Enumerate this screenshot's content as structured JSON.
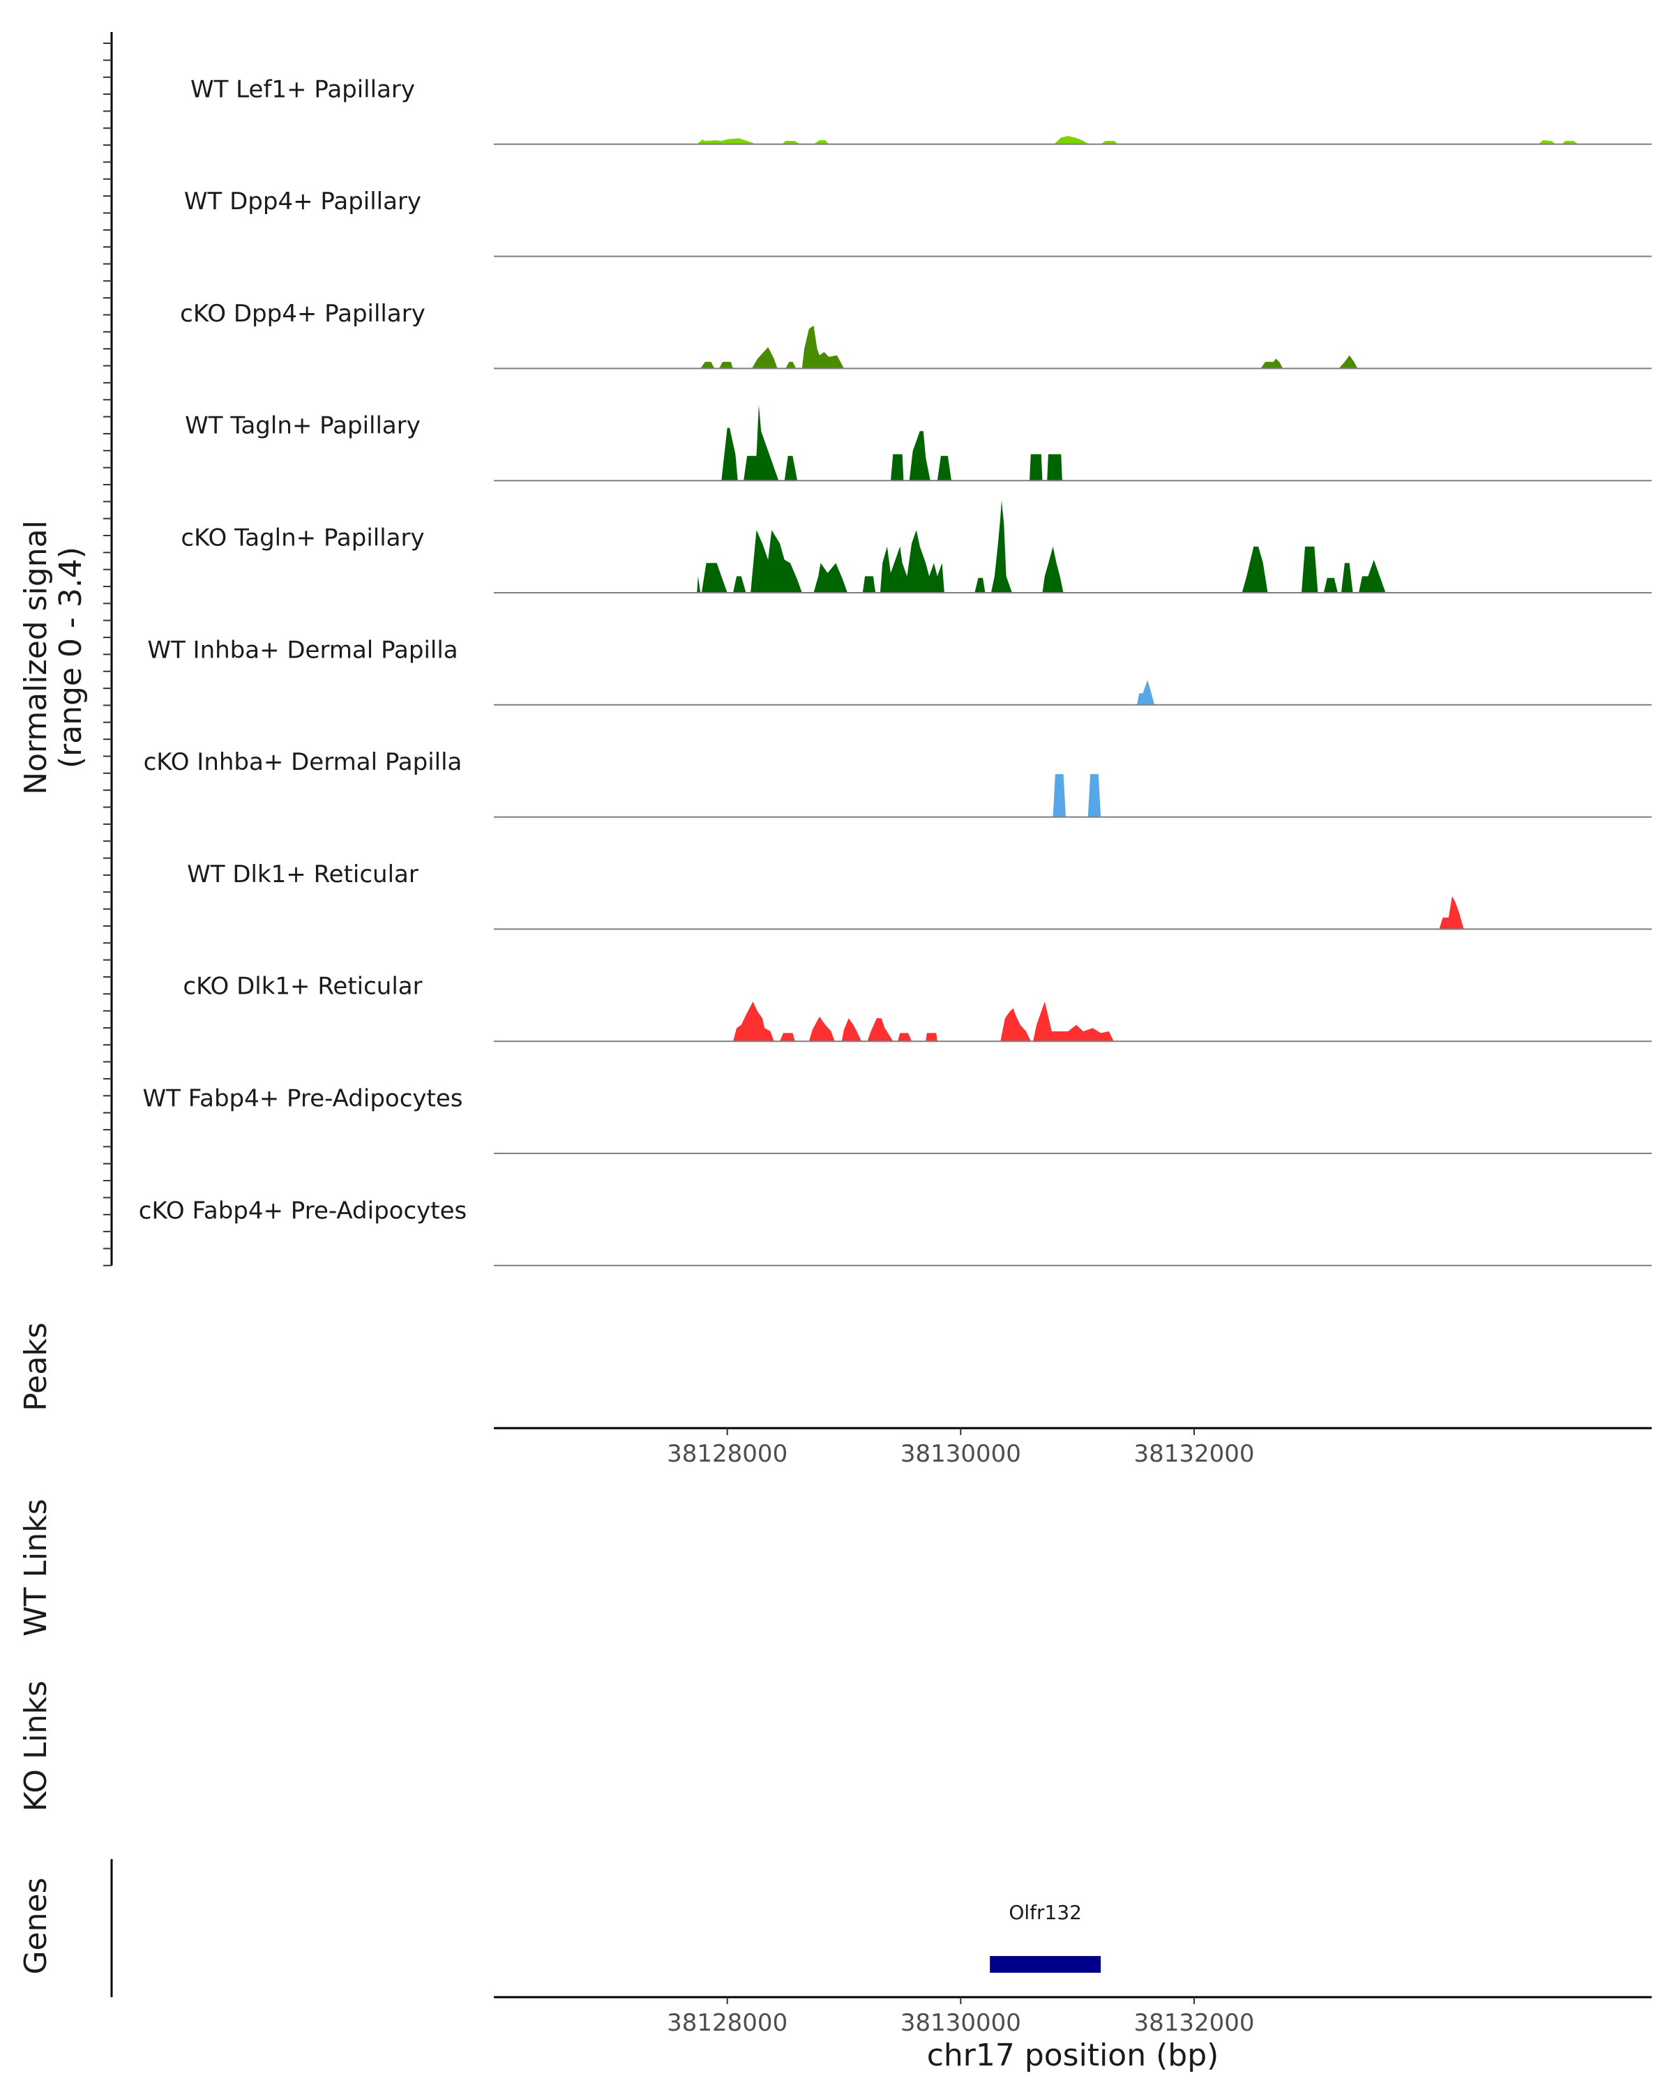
{
  "chart_data": {
    "type": "area",
    "coverage_ylabel_line1": "Normalized signal",
    "coverage_ylabel_line2": "(range 0 - 3.4)",
    "ylim": [
      0,
      3.4
    ],
    "xlim": [
      38126000,
      38135920
    ],
    "x_ticks": [
      38128000,
      38130000,
      38132000
    ],
    "x_tick_labels": [
      "38128000",
      "38130000",
      "38132000"
    ],
    "xlabel": "chr17 position (bp)",
    "peaks_label": "Peaks",
    "wt_links_label": "WT Links",
    "ko_links_label": "KO Links",
    "genes_label": "Genes",
    "gene": {
      "name": "Olfr132",
      "start": 38130250,
      "end": 38131200,
      "color": "#00008b"
    },
    "tracks": [
      {
        "name": "WT Lef1+ Papillary",
        "color": "#7cd300",
        "regions": [
          {
            "x": [
              38127740,
              38127790,
              38127800,
              38127900,
              38127950,
              38128000,
              38128100,
              38128150,
              38128250
            ],
            "y": [
              0,
              0.15,
              0.1,
              0.12,
              0.1,
              0.15,
              0.18,
              0.12,
              0
            ]
          },
          {
            "x": [
              38128470,
              38128500,
              38128580,
              38128620
            ],
            "y": [
              0,
              0.1,
              0.1,
              0
            ]
          },
          {
            "x": [
              38128740,
              38128790,
              38128840,
              38128870
            ],
            "y": [
              0,
              0.12,
              0.12,
              0
            ]
          },
          {
            "x": [
              38130800,
              38130860,
              38130920,
              38130980,
              38131040,
              38131100
            ],
            "y": [
              0,
              0.2,
              0.25,
              0.2,
              0.12,
              0
            ]
          },
          {
            "x": [
              38131200,
              38131240,
              38131320,
              38131340
            ],
            "y": [
              0,
              0.1,
              0.1,
              0
            ]
          },
          {
            "x": [
              38134950,
              38134990,
              38135060,
              38135100
            ],
            "y": [
              0,
              0.12,
              0.1,
              0
            ]
          },
          {
            "x": [
              38135150,
              38135180,
              38135250,
              38135290
            ],
            "y": [
              0,
              0.1,
              0.1,
              0
            ]
          }
        ]
      },
      {
        "name": "WT Dpp4+ Papillary",
        "color": "#5aa000",
        "regions": []
      },
      {
        "name": "cKO Dpp4+ Papillary",
        "color": "#4a8c00",
        "regions": [
          {
            "x": [
              38127770,
              38127810,
              38127860,
              38127890
            ],
            "y": [
              0,
              0.2,
              0.2,
              0
            ]
          },
          {
            "x": [
              38127930,
              38127960,
              38128030,
              38128050
            ],
            "y": [
              0,
              0.2,
              0.2,
              0
            ]
          },
          {
            "x": [
              38128210,
              38128260,
              38128350,
              38128400,
              38128430
            ],
            "y": [
              0,
              0.3,
              0.65,
              0.3,
              0
            ]
          },
          {
            "x": [
              38128500,
              38128530,
              38128560,
              38128590
            ],
            "y": [
              0,
              0.2,
              0.2,
              0
            ]
          },
          {
            "x": [
              38128640,
              38128660,
              38128700,
              38128740,
              38128770,
              38128790,
              38128830,
              38128870,
              38128940,
              38129000
            ],
            "y": [
              0,
              0.6,
              1.2,
              1.3,
              0.6,
              0.4,
              0.5,
              0.35,
              0.4,
              0
            ]
          },
          {
            "x": [
              38132570,
              38132610,
              38132680,
              38132700,
              38132730,
              38132760
            ],
            "y": [
              0,
              0.2,
              0.2,
              0.3,
              0.2,
              0
            ]
          },
          {
            "x": [
              38133240,
              38133290,
              38133330,
              38133370,
              38133400
            ],
            "y": [
              0,
              0.2,
              0.4,
              0.2,
              0
            ]
          }
        ]
      },
      {
        "name": "WT Tagln+ Papillary",
        "color": "#006400",
        "regions": [
          {
            "x": [
              38127950,
              38128000,
              38128020,
              38128070,
              38128090
            ],
            "y": [
              0,
              1.6,
              1.6,
              0.8,
              0
            ]
          },
          {
            "x": [
              38128140,
              38128170,
              38128250,
              38128270,
              38128290,
              38128440
            ],
            "y": [
              0,
              0.75,
              0.75,
              2.3,
              1.5,
              0
            ]
          },
          {
            "x": [
              38128490,
              38128520,
              38128560,
              38128600
            ],
            "y": [
              0,
              0.75,
              0.75,
              0
            ]
          },
          {
            "x": [
              38129400,
              38129420,
              38129500,
              38129510
            ],
            "y": [
              0,
              0.8,
              0.8,
              0
            ]
          },
          {
            "x": [
              38129560,
              38129590,
              38129650,
              38129680,
              38129700,
              38129740
            ],
            "y": [
              0,
              0.9,
              1.5,
              1.5,
              0.7,
              0
            ]
          },
          {
            "x": [
              38129800,
              38129830,
              38129890,
              38129920
            ],
            "y": [
              0,
              0.75,
              0.75,
              0
            ]
          },
          {
            "x": [
              38130590,
              38130600,
              38130690,
              38130700
            ],
            "y": [
              0,
              0.8,
              0.8,
              0
            ]
          },
          {
            "x": [
              38130740,
              38130750,
              38130860,
              38130870
            ],
            "y": [
              0,
              0.8,
              0.8,
              0
            ]
          }
        ]
      },
      {
        "name": "cKO Tagln+ Papillary",
        "color": "#006400",
        "regions": [
          {
            "x": [
              38127740,
              38127750,
              38127770
            ],
            "y": [
              0,
              0.5,
              0
            ]
          },
          {
            "x": [
              38127780,
              38127820,
              38127850,
              38127910,
              38127950,
              38128000
            ],
            "y": [
              0,
              0.9,
              0.9,
              0.9,
              0.5,
              0
            ]
          },
          {
            "x": [
              38128050,
              38128080,
              38128120,
              38128160
            ],
            "y": [
              0,
              0.5,
              0.5,
              0
            ]
          },
          {
            "x": [
              38128200,
              38128250,
              38128300,
              38128350,
              38128380,
              38128450,
              38128490,
              38128540,
              38128600,
              38128640
            ],
            "y": [
              0,
              1.9,
              1.5,
              1.0,
              1.9,
              1.5,
              1.0,
              0.9,
              0.4,
              0
            ]
          },
          {
            "x": [
              38128740,
              38128780,
              38128800,
              38128860,
              38128930,
              38128990,
              38129030
            ],
            "y": [
              0,
              0.5,
              0.9,
              0.6,
              0.9,
              0.4,
              0
            ]
          },
          {
            "x": [
              38129160,
              38129180,
              38129250,
              38129270
            ],
            "y": [
              0,
              0.5,
              0.5,
              0
            ]
          },
          {
            "x": [
              38129310,
              38129330,
              38129370,
              38129400,
              38129480,
              38129500,
              38129540,
              38129580,
              38129620,
              38129650,
              38129700,
              38129730,
              38129770,
              38129800,
              38129840,
              38129860
            ],
            "y": [
              0,
              0.9,
              1.4,
              0.6,
              1.4,
              0.9,
              0.5,
              1.5,
              1.9,
              1.4,
              0.9,
              0.5,
              0.9,
              0.5,
              0.9,
              0
            ]
          },
          {
            "x": [
              38130120,
              38130150,
              38130190,
              38130210
            ],
            "y": [
              0,
              0.45,
              0.45,
              0
            ]
          },
          {
            "x": [
              38130260,
              38130290,
              38130320,
              38130340,
              38130350,
              38130370,
              38130390,
              38130440
            ],
            "y": [
              0,
              0.5,
              1.5,
              2.3,
              2.8,
              2.1,
              0.5,
              0
            ]
          },
          {
            "x": [
              38130700,
              38130720,
              38130760,
              38130790,
              38130820,
              38130850,
              38130880
            ],
            "y": [
              0,
              0.5,
              1.0,
              1.4,
              0.9,
              0.5,
              0
            ]
          },
          {
            "x": [
              38132410,
              38132450,
              38132510,
              38132550,
              38132590,
              38132630
            ],
            "y": [
              0,
              0.5,
              1.4,
              1.4,
              0.9,
              0
            ]
          },
          {
            "x": [
              38132920,
              38132950,
              38133030,
              38133060
            ],
            "y": [
              0,
              1.4,
              1.4,
              0
            ]
          },
          {
            "x": [
              38133110,
              38133140,
              38133200,
              38133230
            ],
            "y": [
              0,
              0.45,
              0.45,
              0
            ]
          },
          {
            "x": [
              38133260,
              38133290,
              38133330,
              38133360
            ],
            "y": [
              0,
              0.9,
              0.9,
              0
            ]
          },
          {
            "x": [
              38133410,
              38133440,
              38133490,
              38133540,
              38133590,
              38133640
            ],
            "y": [
              0,
              0.5,
              0.5,
              1.0,
              0.5,
              0
            ]
          }
        ]
      },
      {
        "name": "WT Inhba+ Dermal Papilla",
        "color": "#56a6e8",
        "regions": [
          {
            "x": [
              38131510,
              38131530,
              38131560,
              38131600,
              38131630,
              38131660
            ],
            "y": [
              0,
              0.35,
              0.35,
              0.75,
              0.4,
              0
            ]
          }
        ]
      },
      {
        "name": "cKO Inhba+ Dermal Papilla",
        "color": "#56a6e8",
        "regions": [
          {
            "x": [
              38130790,
              38130810,
              38130880,
              38130900
            ],
            "y": [
              0,
              1.3,
              1.3,
              0
            ]
          },
          {
            "x": [
              38131090,
              38131110,
              38131180,
              38131200
            ],
            "y": [
              0,
              1.3,
              1.3,
              0
            ]
          }
        ]
      },
      {
        "name": "WT Dlk1+ Reticular",
        "color": "#ff3030",
        "regions": [
          {
            "x": [
              38134100,
              38134130,
              38134180,
              38134210,
              38134240,
              38134270,
              38134310
            ],
            "y": [
              0,
              0.35,
              0.35,
              1.0,
              0.8,
              0.5,
              0
            ]
          }
        ]
      },
      {
        "name": "cKO Dlk1+ Reticular",
        "color": "#ff3030",
        "regions": [
          {
            "x": [
              38128050,
              38128080,
              38128120,
              38128160,
              38128190,
              38128220,
              38128260,
              38128300,
              38128320,
              38128370,
              38128400
            ],
            "y": [
              0,
              0.4,
              0.5,
              0.8,
              1.0,
              1.2,
              0.9,
              0.7,
              0.4,
              0.3,
              0
            ]
          },
          {
            "x": [
              38128450,
              38128480,
              38128560,
              38128580
            ],
            "y": [
              0,
              0.25,
              0.25,
              0
            ]
          },
          {
            "x": [
              38128700,
              38128730,
              38128790,
              38128840,
              38128890,
              38128920
            ],
            "y": [
              0,
              0.35,
              0.75,
              0.5,
              0.3,
              0
            ]
          },
          {
            "x": [
              38128980,
              38129000,
              38129040,
              38129080,
              38129110,
              38129150
            ],
            "y": [
              0,
              0.35,
              0.7,
              0.5,
              0.3,
              0
            ]
          },
          {
            "x": [
              38129200,
              38129230,
              38129280,
              38129320,
              38129350,
              38129420
            ],
            "y": [
              0,
              0.3,
              0.7,
              0.7,
              0.4,
              0
            ]
          },
          {
            "x": [
              38129460,
              38129480,
              38129550,
              38129580
            ],
            "y": [
              0,
              0.25,
              0.25,
              0
            ]
          },
          {
            "x": [
              38129700,
              38129710,
              38129790,
              38129800
            ],
            "y": [
              0,
              0.25,
              0.25,
              0
            ]
          },
          {
            "x": [
              38130340,
              38130380,
              38130420,
              38130450,
              38130470,
              38130510,
              38130560,
              38130600
            ],
            "y": [
              0,
              0.7,
              0.9,
              1.0,
              0.8,
              0.5,
              0.3,
              0
            ]
          },
          {
            "x": [
              38130620,
              38130650,
              38130690,
              38130720,
              38130740,
              38130780,
              38130850,
              38130920,
              38130990,
              38131050,
              38131130,
              38131200,
              38131270,
              38131310
            ],
            "y": [
              0,
              0.5,
              0.9,
              1.2,
              0.9,
              0.3,
              0.3,
              0.3,
              0.5,
              0.3,
              0.4,
              0.25,
              0.3,
              0
            ]
          }
        ]
      },
      {
        "name": "WT Fabp4+ Pre-Adipocytes",
        "color": "#c9a400",
        "regions": []
      },
      {
        "name": "cKO Fabp4+ Pre-Adipocytes",
        "color": "#c9a400",
        "regions": []
      }
    ]
  }
}
